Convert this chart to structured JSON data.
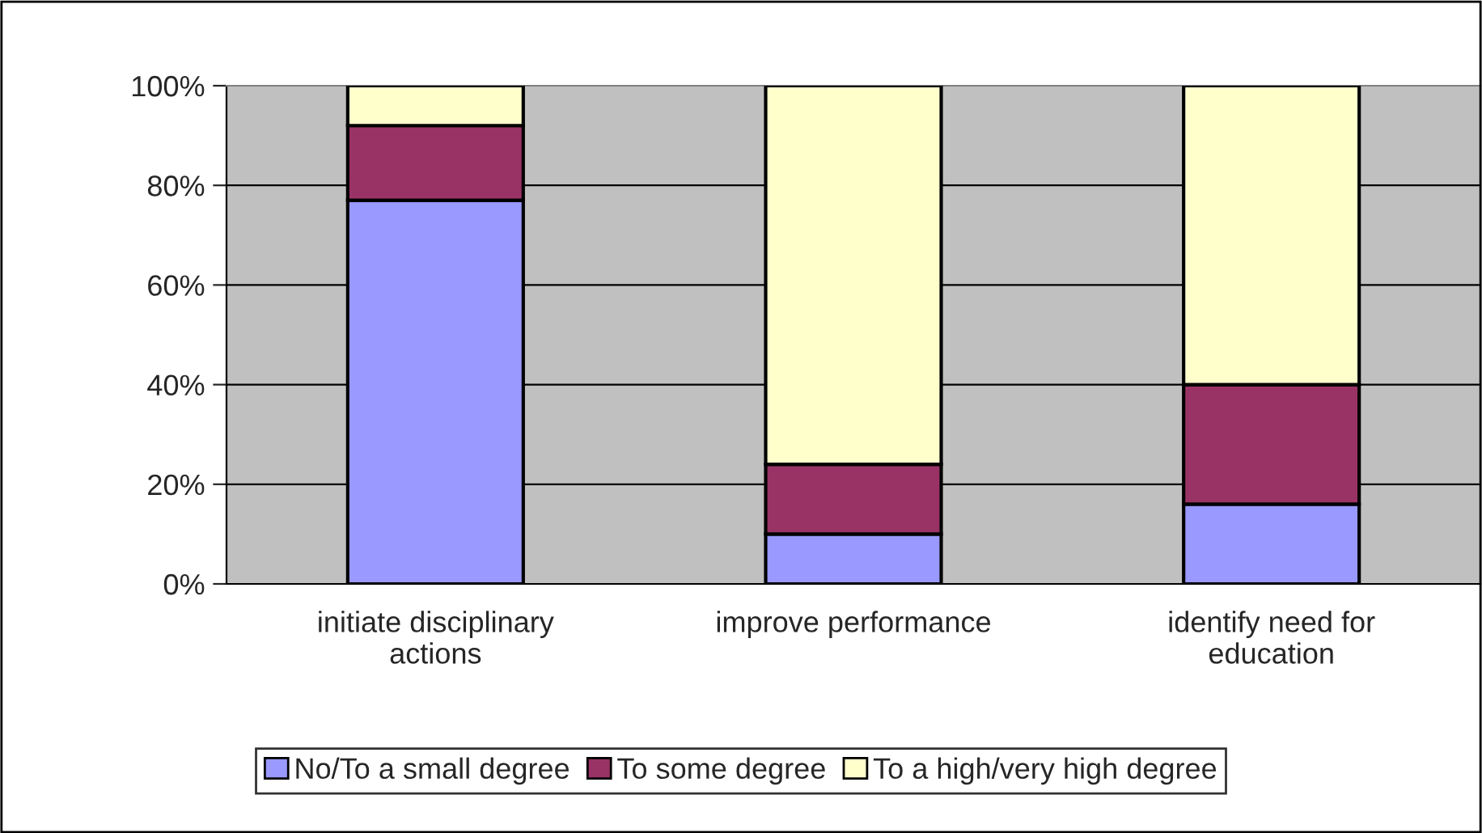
{
  "chart_data": {
    "type": "bar",
    "stacked": true,
    "categories": [
      "initiate disciplinary\nactions",
      "improve performance",
      "identify need for\neducation"
    ],
    "series": [
      {
        "name": "No/To a small degree",
        "color": "#9999ff",
        "values": [
          77,
          10,
          16
        ]
      },
      {
        "name": "To some degree",
        "color": "#993366",
        "values": [
          15,
          14,
          24
        ]
      },
      {
        "name": "To a high/very high degree",
        "color": "#ffffcc",
        "values": [
          8,
          76,
          60
        ]
      }
    ],
    "ylim": [
      0,
      100
    ],
    "yticks": [
      {
        "value": 0,
        "label": "0%"
      },
      {
        "value": 20,
        "label": "20%"
      },
      {
        "value": 40,
        "label": "40%"
      },
      {
        "value": 60,
        "label": "60%"
      },
      {
        "value": 80,
        "label": "80%"
      },
      {
        "value": 100,
        "label": "100%"
      }
    ],
    "grid": "y",
    "legend": "bottom"
  }
}
